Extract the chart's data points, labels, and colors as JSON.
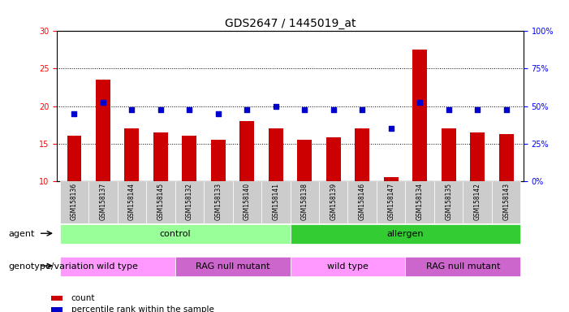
{
  "title": "GDS2647 / 1445019_at",
  "samples": [
    "GSM158136",
    "GSM158137",
    "GSM158144",
    "GSM158145",
    "GSM158132",
    "GSM158133",
    "GSM158140",
    "GSM158141",
    "GSM158138",
    "GSM158139",
    "GSM158146",
    "GSM158147",
    "GSM158134",
    "GSM158135",
    "GSM158142",
    "GSM158143"
  ],
  "counts": [
    16.0,
    23.5,
    17.0,
    16.5,
    16.0,
    15.5,
    18.0,
    17.0,
    15.5,
    15.8,
    17.0,
    10.5,
    27.5,
    17.0,
    16.5,
    16.3
  ],
  "percentiles": [
    19.0,
    20.5,
    19.5,
    19.5,
    19.5,
    19.0,
    19.5,
    20.0,
    19.5,
    19.5,
    19.5,
    17.0,
    20.5,
    19.5,
    19.5,
    19.5
  ],
  "bar_color": "#cc0000",
  "dot_color": "#0000cc",
  "ylim_left": [
    10,
    30
  ],
  "ylim_right": [
    0,
    100
  ],
  "yticks_left": [
    10,
    15,
    20,
    25,
    30
  ],
  "yticks_right": [
    0,
    25,
    50,
    75,
    100
  ],
  "agent_groups": [
    {
      "label": "control",
      "start": 0,
      "end": 8,
      "color": "#99ff99"
    },
    {
      "label": "allergen",
      "start": 8,
      "end": 16,
      "color": "#33cc33"
    }
  ],
  "genotype_groups": [
    {
      "label": "wild type",
      "start": 0,
      "end": 4,
      "color": "#ff99ff"
    },
    {
      "label": "RAG null mutant",
      "start": 4,
      "end": 8,
      "color": "#cc66cc"
    },
    {
      "label": "wild type",
      "start": 8,
      "end": 12,
      "color": "#ff99ff"
    },
    {
      "label": "RAG null mutant",
      "start": 12,
      "end": 16,
      "color": "#cc66cc"
    }
  ],
  "agent_label": "agent",
  "genotype_label": "genotype/variation",
  "legend_count_label": "count",
  "legend_percentile_label": "percentile rank within the sample",
  "background_color": "#ffffff",
  "xticklabel_bg": "#cccccc"
}
